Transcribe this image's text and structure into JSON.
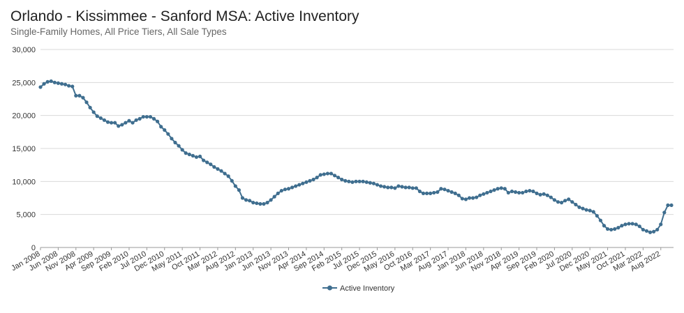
{
  "chart_data": {
    "type": "line",
    "title": "Orlando - Kissimmee - Sanford MSA: Active Inventory",
    "subtitle": "Single-Family Homes, All Price Tiers, All Sale Types",
    "xlabel": "",
    "ylabel": "",
    "ylim": [
      0,
      30000
    ],
    "yticks": [
      0,
      5000,
      10000,
      15000,
      20000,
      25000,
      30000
    ],
    "ytick_labels": [
      "0",
      "5,000",
      "10,000",
      "15,000",
      "20,000",
      "25,000",
      "30,000"
    ],
    "start": "Jan 2008",
    "end": "Sep 2022",
    "xtick_labels": [
      "Jan 2008",
      "Jun 2008",
      "Nov 2008",
      "Apr 2009",
      "Sep 2009",
      "Feb 2010",
      "Jul 2010",
      "Dec 2010",
      "May 2011",
      "Oct 2011",
      "Mar 2012",
      "Aug 2012",
      "Jan 2013",
      "Jun 2013",
      "Nov 2013",
      "Apr 2014",
      "Sep 2014",
      "Feb 2015",
      "Jul 2015",
      "Dec 2015",
      "May 2016",
      "Oct 2016",
      "Mar 2017",
      "Aug 2017",
      "Jan 2018",
      "Jun 2018",
      "Nov 2018",
      "Apr 2019",
      "Sep 2019",
      "Feb 2020",
      "Jul 2020",
      "Dec 2020",
      "May 2021",
      "Oct 2021",
      "Mar 2022",
      "Aug 2022"
    ],
    "legend": "bottom-center",
    "grid": true,
    "series": [
      {
        "name": "Active Inventory",
        "color": "#3f6e8f",
        "values": [
          24300,
          24800,
          25100,
          25200,
          25000,
          24900,
          24800,
          24700,
          24500,
          24400,
          23000,
          23000,
          22700,
          22000,
          21200,
          20500,
          19900,
          19600,
          19300,
          19000,
          18900,
          18900,
          18400,
          18600,
          18900,
          19200,
          18900,
          19300,
          19500,
          19800,
          19800,
          19800,
          19500,
          19100,
          18300,
          17800,
          17200,
          16500,
          15900,
          15400,
          14800,
          14300,
          14100,
          13900,
          13700,
          13800,
          13200,
          12900,
          12600,
          12200,
          11900,
          11600,
          11200,
          10800,
          10100,
          9300,
          8700,
          7500,
          7200,
          7100,
          6800,
          6700,
          6600,
          6600,
          6800,
          7200,
          7700,
          8200,
          8600,
          8800,
          8900,
          9100,
          9300,
          9500,
          9700,
          9900,
          10100,
          10300,
          10600,
          11000,
          11100,
          11200,
          11200,
          10900,
          10600,
          10300,
          10100,
          10000,
          9900,
          10000,
          10000,
          10000,
          9900,
          9800,
          9700,
          9500,
          9300,
          9200,
          9100,
          9100,
          9000,
          9300,
          9200,
          9100,
          9100,
          9000,
          9000,
          8500,
          8200,
          8200,
          8200,
          8300,
          8400,
          8900,
          8800,
          8600,
          8400,
          8200,
          7900,
          7400,
          7300,
          7500,
          7500,
          7600,
          7900,
          8100,
          8300,
          8500,
          8700,
          8900,
          9000,
          8900,
          8300,
          8500,
          8400,
          8300,
          8300,
          8500,
          8600,
          8500,
          8200,
          8000,
          8100,
          7900,
          7600,
          7200,
          6900,
          6800,
          7100,
          7300,
          6900,
          6500,
          6100,
          5900,
          5700,
          5600,
          5400,
          4800,
          4100,
          3300,
          2800,
          2700,
          2800,
          3000,
          3300,
          3500,
          3600,
          3600,
          3500,
          3200,
          2700,
          2500,
          2300,
          2400,
          2700,
          3500,
          5300,
          6400,
          6400
        ]
      }
    ]
  }
}
